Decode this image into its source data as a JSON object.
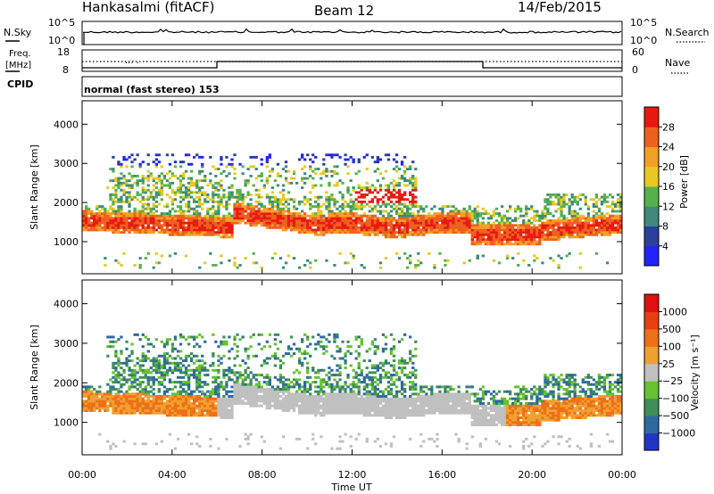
{
  "header": {
    "station": "Hankasalmi (fitACF)",
    "beam": "Beam 12",
    "date": "14/Feb/2015"
  },
  "nsky_panel": {
    "left_label": "N.Sky",
    "right_label": "N.Search",
    "left_ticks": [
      "10^5",
      "10^0"
    ],
    "right_ticks": [
      "10^5",
      "10^0"
    ]
  },
  "freq_panel": {
    "left_label_line1": "Freq.",
    "left_label_line2": "[MHz]",
    "left_ticks": [
      "18",
      "8"
    ],
    "right_label": "Nave",
    "right_ticks": [
      "60",
      "0"
    ],
    "cpid_label": "CPID"
  },
  "mode_text": "normal (fast stereo) 153",
  "chart_data": [
    {
      "type": "heatmap",
      "parameter": "power",
      "ylabel": "Slant Range [km]",
      "yticks": [
        "1000",
        "2000",
        "3000",
        "4000"
      ],
      "ylim": [
        180,
        4600
      ],
      "colorbar": {
        "label": "Power [dB]",
        "ticks": [
          "4",
          "8",
          "12",
          "16",
          "20",
          "24",
          "28"
        ],
        "colors": [
          "#2222ff",
          "#2b3f9c",
          "#3f8a7a",
          "#55b24a",
          "#e8c820",
          "#f2a024",
          "#ee6020",
          "#e81a10"
        ]
      },
      "grid": false
    },
    {
      "type": "heatmap",
      "parameter": "velocity",
      "ylabel": "Slant Range [km]",
      "yticks": [
        "1000",
        "2000",
        "3000",
        "4000"
      ],
      "ylim": [
        180,
        4600
      ],
      "colorbar": {
        "label": "Velocity [m s⁻¹]",
        "ticks": [
          "1000",
          "500",
          "100",
          "25",
          "−25",
          "−100",
          "−500",
          "−1000"
        ],
        "colors": [
          "#2233c8",
          "#2e6aa0",
          "#3f8f58",
          "#66c230",
          "#c0c0c0",
          "#f0a030",
          "#ee7018",
          "#e84010",
          "#e01010"
        ]
      },
      "grid": false
    }
  ],
  "time_axis": {
    "label": "Time UT",
    "ticks": [
      "00:00",
      "04:00",
      "08:00",
      "12:00",
      "16:00",
      "20:00",
      "00:00"
    ]
  }
}
